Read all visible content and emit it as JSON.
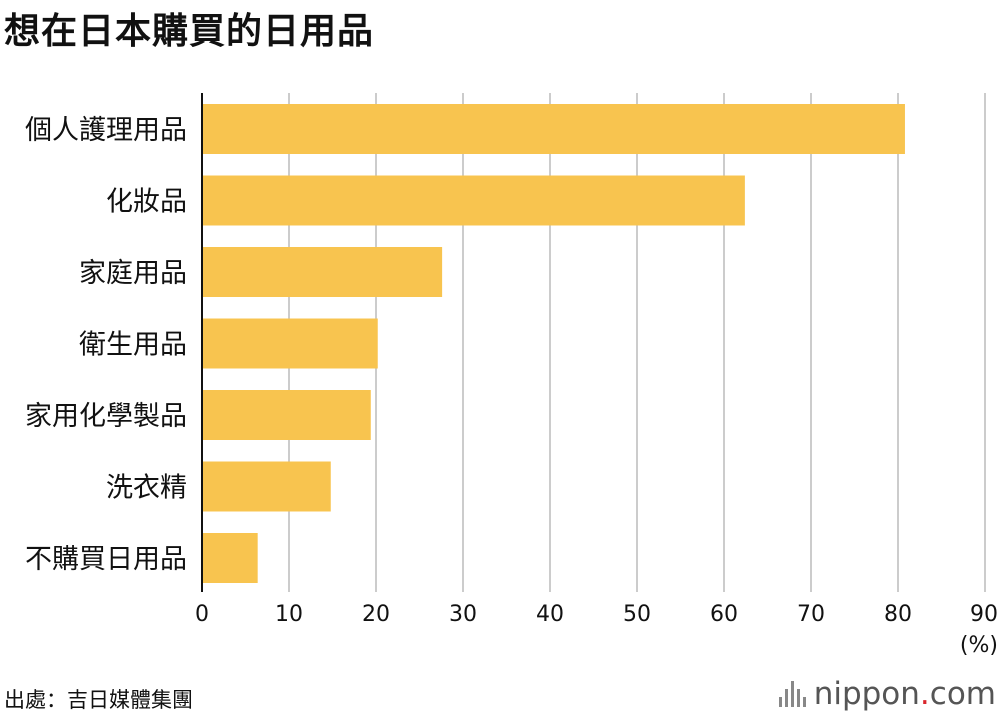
{
  "title": "想在日本購買的日用品",
  "source": "出處：吉日媒體集團",
  "brand": {
    "name": "nippon",
    "dot": ".",
    "suffix": "com",
    "icon": "nippon-sound-bars-icon",
    "dot_color": "#d9262c"
  },
  "chart_data": {
    "type": "bar",
    "orientation": "horizontal",
    "categories": [
      "個人護理用品",
      "化妝品",
      "家庭用品",
      "衛生用品",
      "家用化學製品",
      "洗衣精",
      "不購買日用品"
    ],
    "values": [
      80.8,
      62.4,
      27.6,
      20.2,
      19.4,
      14.8,
      6.4
    ],
    "xlim": [
      0,
      90
    ],
    "xticks": [
      0,
      10,
      20,
      30,
      40,
      50,
      60,
      70,
      80,
      90
    ],
    "unit": "(%)",
    "grid": true,
    "bar_color": "#f8c44f"
  }
}
